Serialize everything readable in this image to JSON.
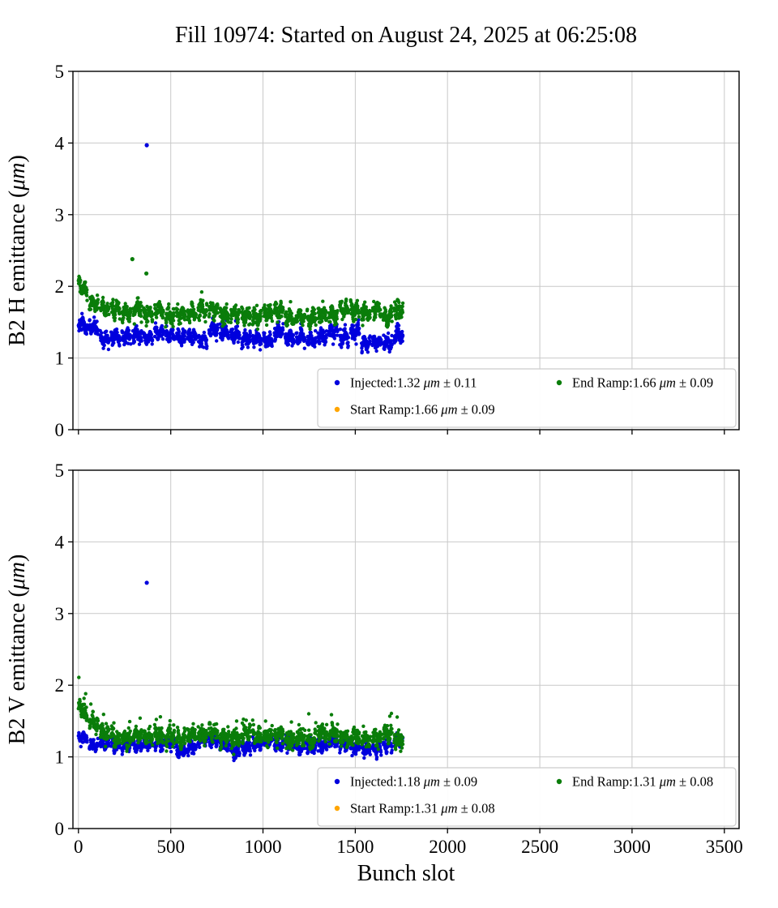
{
  "title": "Fill 10974: Started on August 24, 2025 at 06:25:08",
  "xlabel": "Bunch slot",
  "colors": {
    "injected": "#0000dd",
    "start_ramp": "#ffa500",
    "end_ramp": "#0a7d0a",
    "grid": "#c9c9c9",
    "axis": "#000000",
    "legend_border": "#cccccc"
  },
  "chart_data": [
    {
      "type": "scatter",
      "title": "",
      "ylabel": "B2 H emittance (μm)",
      "xlabel": "",
      "xlim": [
        -30,
        3580
      ],
      "ylim": [
        0,
        5
      ],
      "xticks": [
        0,
        500,
        1000,
        1500,
        2000,
        2500,
        3000,
        3500
      ],
      "yticks": [
        0,
        1,
        2,
        3,
        4,
        5
      ],
      "grid": true,
      "show_x_tick_labels": false,
      "legend_position": "lower right",
      "trains": {
        "count": 30,
        "length": 48,
        "gap": 11
      },
      "series": [
        {
          "name": "Injected",
          "color_key": "injected",
          "mean": 1.32,
          "std": 0.11,
          "legend_label": "Injected:1.32 μm ± 0.11",
          "plotted": true,
          "seed": 101,
          "band": {
            "base": 1.3,
            "start_boost": 0.18,
            "decay": 120,
            "noise": 0.045,
            "wave": 0.05
          }
        },
        {
          "name": "Start Ramp",
          "color_key": "start_ramp",
          "mean": 1.66,
          "std": 0.09,
          "legend_label": "Start Ramp:1.66 μm ± 0.09",
          "plotted": false
        },
        {
          "name": "End Ramp",
          "color_key": "end_ramp",
          "mean": 1.66,
          "std": 0.09,
          "legend_label": "End Ramp:1.66 μm ± 0.09",
          "plotted": true,
          "seed": 202,
          "band": {
            "base": 1.63,
            "start_boost": 0.33,
            "decay": 100,
            "noise": 0.05,
            "wave": 0.06
          }
        }
      ],
      "outliers": [
        {
          "series": "Injected",
          "x": 370,
          "y": 3.97
        },
        {
          "series": "End Ramp",
          "x": 292,
          "y": 2.38
        },
        {
          "series": "End Ramp",
          "x": 368,
          "y": 2.18
        }
      ],
      "legend": {
        "columns": [
          [
            "Injected",
            "Start Ramp"
          ],
          [
            "End Ramp"
          ]
        ]
      }
    },
    {
      "type": "scatter",
      "title": "",
      "ylabel": "B2 V emittance (μm)",
      "xlabel": "Bunch slot",
      "xlim": [
        -30,
        3580
      ],
      "ylim": [
        0,
        5
      ],
      "xticks": [
        0,
        500,
        1000,
        1500,
        2000,
        2500,
        3000,
        3500
      ],
      "yticks": [
        0,
        1,
        2,
        3,
        4,
        5
      ],
      "grid": true,
      "show_x_tick_labels": true,
      "legend_position": "lower right",
      "trains": {
        "count": 30,
        "length": 48,
        "gap": 11
      },
      "series": [
        {
          "name": "Injected",
          "color_key": "injected",
          "mean": 1.18,
          "std": 0.09,
          "legend_label": "Injected:1.18 μm ± 0.09",
          "plotted": true,
          "seed": 303,
          "band": {
            "base": 1.16,
            "start_boost": 0.1,
            "decay": 140,
            "noise": 0.04,
            "wave": 0.04
          }
        },
        {
          "name": "Start Ramp",
          "color_key": "start_ramp",
          "mean": 1.31,
          "std": 0.08,
          "legend_label": "Start Ramp:1.31 μm ± 0.08",
          "plotted": false
        },
        {
          "name": "End Ramp",
          "color_key": "end_ramp",
          "mean": 1.31,
          "std": 0.08,
          "legend_label": "End Ramp:1.31 μm ± 0.08",
          "plotted": true,
          "seed": 404,
          "band": {
            "base": 1.29,
            "start_boost": 0.38,
            "decay": 80,
            "noise": 0.055,
            "wave": 0.05,
            "spike": {
              "prob": 0.03,
              "max": 0.3
            }
          }
        }
      ],
      "outliers": [
        {
          "series": "Injected",
          "x": 370,
          "y": 3.43
        }
      ],
      "legend": {
        "columns": [
          [
            "Injected",
            "Start Ramp"
          ],
          [
            "End Ramp"
          ]
        ]
      }
    }
  ]
}
